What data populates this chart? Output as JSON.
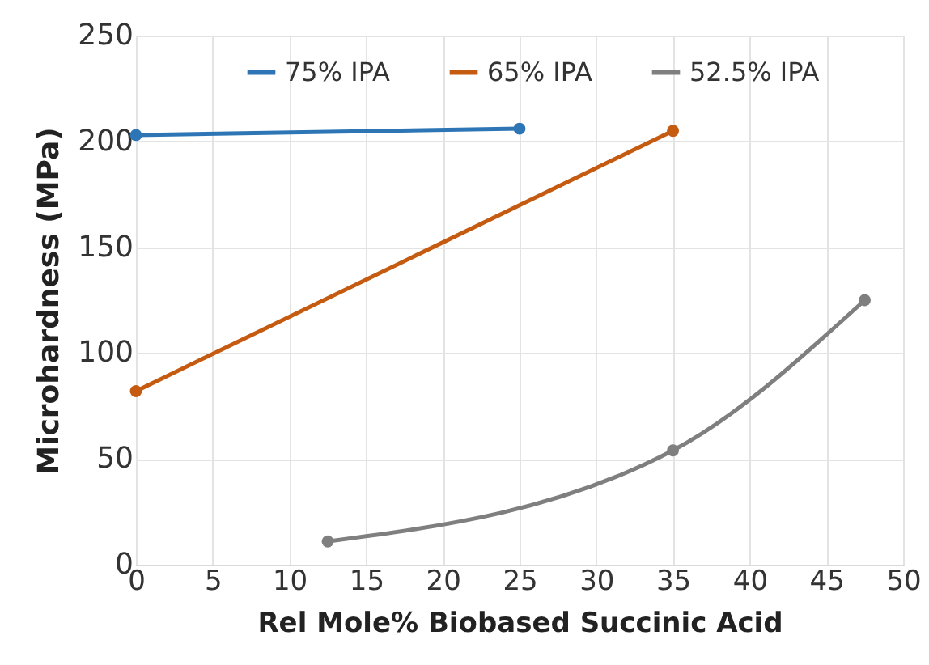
{
  "chart_data": {
    "type": "line",
    "xlabel": "Rel Mole% Biobased Succinic Acid",
    "ylabel": "Microhardness (MPa)",
    "xlim": [
      0,
      50
    ],
    "xticks": [
      0,
      5,
      10,
      15,
      20,
      25,
      30,
      35,
      40,
      45,
      50
    ],
    "ylim": [
      0,
      250
    ],
    "yticks": [
      0,
      50,
      100,
      150,
      200,
      250
    ],
    "grid": true,
    "legend": "top",
    "marker": "circle",
    "line_style": "solid",
    "series": [
      {
        "name": "75% IPA",
        "color": "#2e75b6",
        "x": [
          0,
          25
        ],
        "values": [
          203,
          206
        ]
      },
      {
        "name": "65% IPA",
        "color": "#c55a11",
        "x": [
          0,
          35
        ],
        "values": [
          82,
          205
        ]
      },
      {
        "name": "52.5% IPA",
        "color": "#7f7f7f",
        "x": [
          12.5,
          35,
          47.5
        ],
        "values": [
          11,
          54,
          125
        ]
      }
    ]
  }
}
